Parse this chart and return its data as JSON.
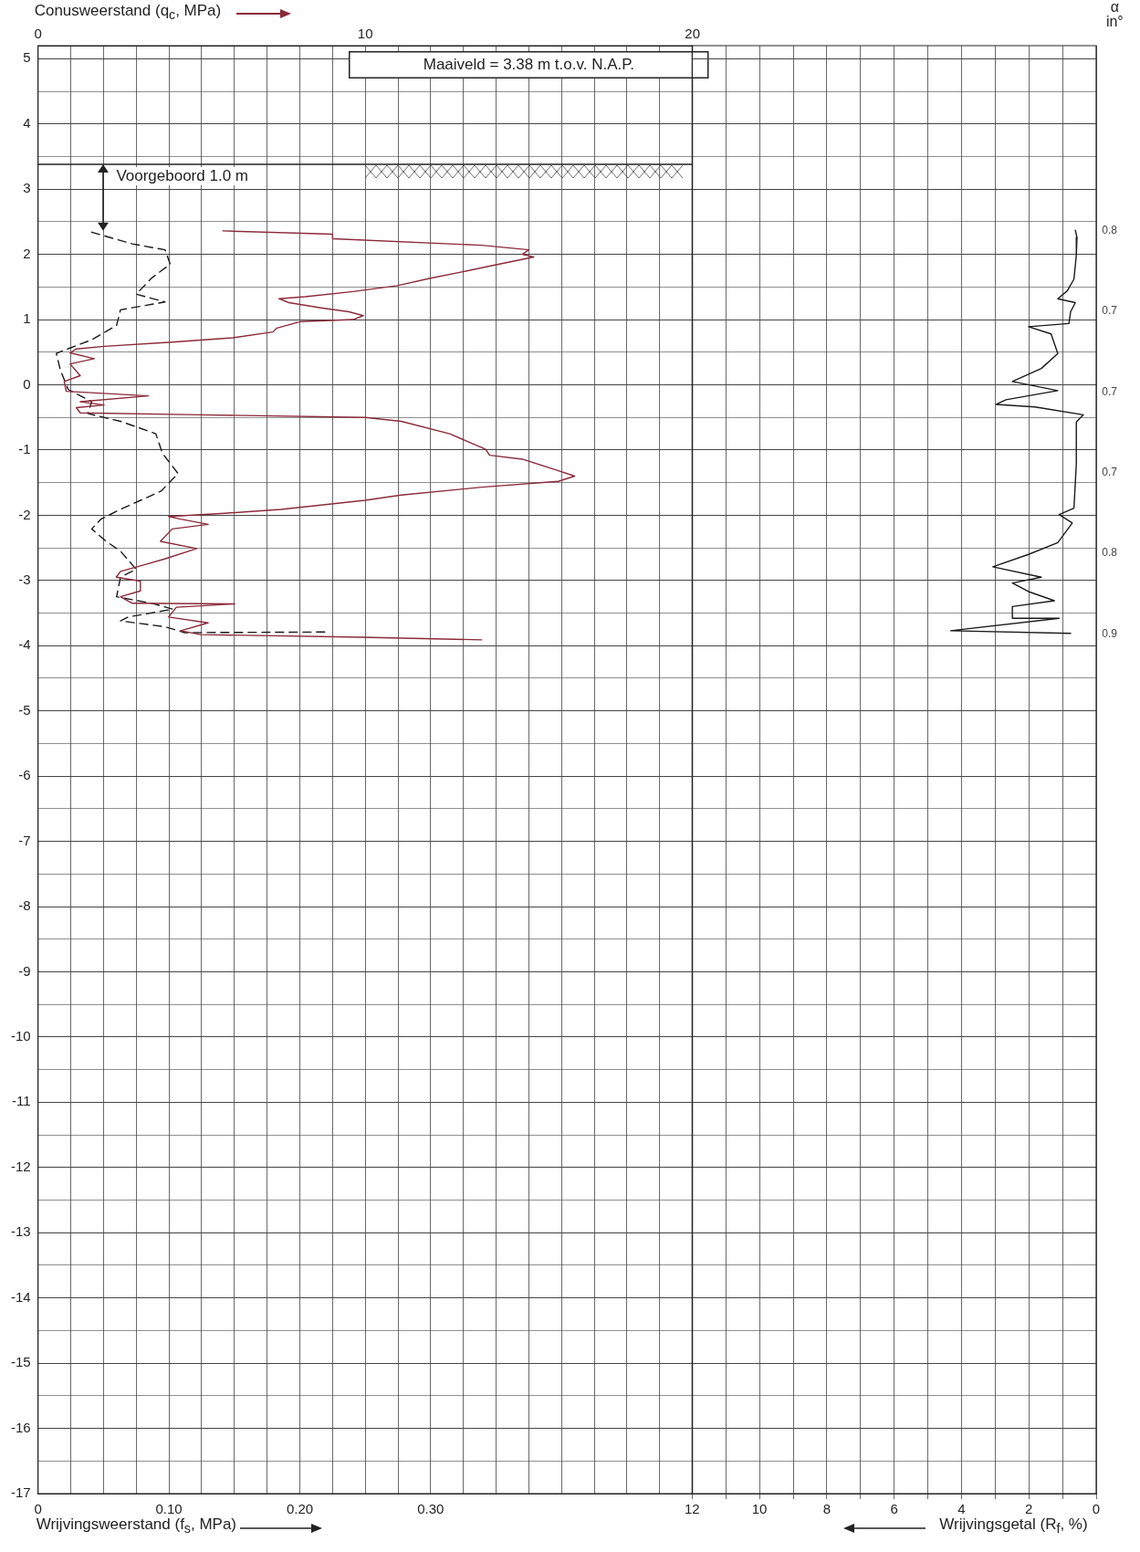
{
  "chart_data": [
    {
      "type": "line",
      "x2label": "Conusweerstand (q$_{c}$, MPa)",
      "xlabel": "Wrijvingsweerstand (f$_{s}$, MPa)",
      "x2lim": [
        0,
        20
      ],
      "x2ticks": [
        0,
        {
          "value": 1,
          "label": null
        },
        {
          "value": 2,
          "label": null
        },
        {
          "value": 3,
          "label": null
        },
        {
          "value": 4,
          "label": null
        },
        {
          "value": 5,
          "label": null
        },
        {
          "value": 6,
          "label": null
        },
        {
          "value": 7,
          "label": null
        },
        {
          "value": 8,
          "label": null
        },
        {
          "value": 9,
          "label": null
        },
        10,
        {
          "value": 11,
          "label": null
        },
        {
          "value": 12,
          "label": null
        },
        {
          "value": 13,
          "label": null
        },
        {
          "value": 14,
          "label": null
        },
        {
          "value": 15,
          "label": null
        },
        {
          "value": 16,
          "label": null
        },
        {
          "value": 17,
          "label": null
        },
        {
          "value": 18,
          "label": null
        },
        {
          "value": 19,
          "label": null
        },
        20
      ],
      "xlim": [
        0,
        0.5
      ],
      "xticks": [
        0,
        {
          "value": 0.1,
          "label": "0.10"
        },
        {
          "value": 0.2,
          "label": "0.20"
        },
        {
          "value": 0.3,
          "label": "0.30"
        }
      ],
      "ylim": [
        -17,
        5.2
      ],
      "yticks": [
        5,
        {
          "value": 4.5,
          "label": null
        },
        4,
        {
          "value": 3.5,
          "label": null
        },
        3,
        {
          "value": 2.5,
          "label": null
        },
        2,
        {
          "value": 1.5,
          "label": null
        },
        1,
        {
          "value": 0.5,
          "label": null
        },
        0,
        {
          "value": -0.5,
          "label": null
        },
        -1,
        {
          "value": -1.5,
          "label": null
        },
        -2,
        {
          "value": -2.5,
          "label": null
        },
        -3,
        {
          "value": -3.5,
          "label": null
        },
        -4,
        {
          "value": -4.5,
          "label": null
        },
        -5,
        {
          "value": -5.5,
          "label": null
        },
        -6,
        {
          "value": -6.5,
          "label": null
        },
        -7,
        {
          "value": -7.5,
          "label": null
        },
        -8,
        {
          "value": -8.5,
          "label": null
        },
        -9,
        {
          "value": -9.5,
          "label": null
        },
        -10,
        {
          "value": -10.5,
          "label": null
        },
        -11,
        {
          "value": -11.5,
          "label": null
        },
        -12,
        {
          "value": -12.5,
          "label": null
        },
        -13,
        {
          "value": -13.5,
          "label": null
        },
        -14,
        {
          "value": -14.5,
          "label": null
        },
        -15,
        {
          "value": -15.5,
          "label": null
        },
        -16,
        {
          "value": -16.5,
          "label": null
        },
        -17
      ],
      "grid": true,
      "legend": false,
      "marker": "none",
      "series": [
        {
          "color": "#8b2a3a",
          "axis": "x2",
          "x": [
            5.65,
            9.0,
            9.0,
            13.55,
            15.0,
            14.8,
            15.15,
            13.8,
            12.95,
            11.96,
            10.98,
            9.63,
            8.16,
            7.36,
            7.67,
            8.65,
            9.5,
            9.94,
            9.63,
            8.04,
            7.3,
            7.18,
            5.95,
            3.99,
            2.02,
            1.17,
            0.98,
            1.72,
            0.98,
            1.29,
            0.8,
            0.86,
            3.37,
            1.29,
            2.02,
            1.17,
            1.29,
            4.97,
            10.0,
            11.1,
            12.58,
            13.68,
            13.8,
            14.8,
            15.8,
            16.4,
            15.9,
            13.56,
            11.1,
            10.0,
            7.42,
            5.7,
            3.99,
            4.36,
            5.2,
            4.1,
            3.74,
            4.85,
            3.87,
            3.25,
            2.52,
            2.39,
            3.13,
            3.13,
            2.52,
            2.88,
            6.01,
            4.23,
            3.99,
            5.2,
            4.36,
            4.97,
            9.88,
            13.56
          ],
          "values": [
            2.36,
            2.31,
            2.24,
            2.14,
            2.07,
            2.0,
            1.96,
            1.82,
            1.73,
            1.63,
            1.52,
            1.43,
            1.35,
            1.32,
            1.26,
            1.18,
            1.12,
            1.06,
            1.0,
            0.97,
            0.87,
            0.81,
            0.72,
            0.65,
            0.59,
            0.55,
            0.49,
            0.4,
            0.32,
            0.14,
            0.05,
            -0.1,
            -0.17,
            -0.26,
            -0.31,
            -0.35,
            -0.43,
            -0.46,
            -0.5,
            -0.56,
            -0.75,
            -0.99,
            -1.08,
            -1.14,
            -1.3,
            -1.4,
            -1.48,
            -1.57,
            -1.69,
            -1.77,
            -1.91,
            -1.97,
            -2.02,
            -2.06,
            -2.14,
            -2.21,
            -2.4,
            -2.51,
            -2.67,
            -2.76,
            -2.86,
            -2.95,
            -3.01,
            -3.16,
            -3.25,
            -3.35,
            -3.36,
            -3.41,
            -3.56,
            -3.65,
            -3.77,
            -3.83,
            -3.87,
            -3.91
          ]
        },
        {
          "color": "#1a1a1a",
          "line_style": "dashed",
          "x": [
            0.041,
            0.072,
            0.097,
            0.101,
            0.087,
            0.075,
            0.097,
            0.063,
            0.06,
            0.041,
            0.02,
            0.014,
            0.017,
            0.023,
            0.041,
            0.038,
            0.063,
            0.09,
            0.095,
            0.107,
            0.094,
            0.063,
            0.048,
            0.041,
            0.052,
            0.063,
            0.075,
            0.063,
            0.06,
            0.087,
            0.103,
            0.069,
            0.063,
            0.097,
            0.112,
            0.219
          ],
          "values": [
            2.34,
            2.16,
            2.07,
            1.85,
            1.64,
            1.39,
            1.27,
            1.15,
            0.91,
            0.69,
            0.53,
            0.48,
            0.23,
            -0.07,
            -0.26,
            -0.44,
            -0.56,
            -0.75,
            -1.05,
            -1.36,
            -1.63,
            -1.91,
            -2.06,
            -2.21,
            -2.4,
            -2.55,
            -2.83,
            -2.95,
            -3.25,
            -3.35,
            -3.44,
            -3.56,
            -3.62,
            -3.71,
            -3.8,
            -3.79
          ]
        }
      ],
      "ref_lines": [
        {
          "axis": "y",
          "value": 3.38
        }
      ],
      "annotations": [
        "Maaiveld = 3.38 m t.o.v. N.A.P.",
        "Voorgeboord 1.0 m"
      ]
    },
    {
      "type": "line",
      "xlabel": "Wrijvingsgetal (R$_{f}$, %)",
      "xlim": [
        12,
        0
      ],
      "xticks": [
        12,
        {
          "value": 11,
          "label": null
        },
        10,
        {
          "value": 9,
          "label": null
        },
        8,
        {
          "value": 7,
          "label": null
        },
        6,
        {
          "value": 5,
          "label": null
        },
        4,
        {
          "value": 3,
          "label": null
        },
        2,
        {
          "value": 1,
          "label": null
        },
        0
      ],
      "ylim": [
        -17,
        5.2
      ],
      "yticks": [
        5,
        {
          "value": 4.5,
          "label": null
        },
        4,
        {
          "value": 3.5,
          "label": null
        },
        3,
        {
          "value": 2.5,
          "label": null
        },
        2,
        {
          "value": 1.5,
          "label": null
        },
        1,
        {
          "value": 0.5,
          "label": null
        },
        0,
        {
          "value": -0.5,
          "label": null
        },
        -1,
        {
          "value": -1.5,
          "label": null
        },
        -2,
        {
          "value": -2.5,
          "label": null
        },
        -3,
        {
          "value": -3.5,
          "label": null
        },
        -4,
        {
          "value": -4.5,
          "label": null
        },
        -5,
        {
          "value": -5.5,
          "label": null
        },
        -6,
        {
          "value": -6.5,
          "label": null
        },
        -7,
        {
          "value": -7.5,
          "label": null
        },
        -8,
        {
          "value": -8.5,
          "label": null
        },
        -9,
        {
          "value": -9.5,
          "label": null
        },
        -10,
        {
          "value": -10.5,
          "label": null
        },
        -11,
        {
          "value": -11.5,
          "label": null
        },
        -12,
        {
          "value": -12.5,
          "label": null
        },
        -13,
        {
          "value": -13.5,
          "label": null
        },
        -14,
        {
          "value": -14.5,
          "label": null
        },
        -15,
        {
          "value": -15.5,
          "label": null
        },
        -16,
        {
          "value": -16.5,
          "label": null
        },
        -17
      ],
      "tick_labels": "x",
      "grid": true,
      "legend": false,
      "marker": "none",
      "series": [
        {
          "color": "#1a1a1a",
          "x": [
            0.62,
            0.57,
            0.59,
            0.66,
            0.86,
            1.14,
            0.62,
            0.76,
            0.81,
            2.01,
            1.34,
            1.14,
            1.63,
            2.49,
            1.14,
            2.68,
            2.97,
            1.82,
            0.38,
            0.59,
            0.59,
            0.66,
            1.1,
            0.71,
            1.14,
            2.01,
            3.07,
            1.63,
            2.49,
            2.01,
            1.24,
            2.49,
            2.49,
            1.1,
            4.32,
            0.76
          ],
          "values": [
            2.37,
            2.26,
            1.99,
            1.62,
            1.44,
            1.32,
            1.26,
            1.12,
            0.94,
            0.89,
            0.78,
            0.48,
            0.25,
            0.05,
            -0.09,
            -0.23,
            -0.3,
            -0.34,
            -0.46,
            -0.57,
            -1.21,
            -1.89,
            -1.99,
            -2.12,
            -2.42,
            -2.6,
            -2.79,
            -2.95,
            -3.04,
            -3.17,
            -3.31,
            -3.4,
            -3.58,
            -3.58,
            -3.77,
            -3.81
          ]
        }
      ],
      "annotations": [
        "α in°",
        "0.8",
        "0.7",
        "0.7",
        "0.7",
        "0.8",
        "0.9"
      ]
    }
  ]
}
